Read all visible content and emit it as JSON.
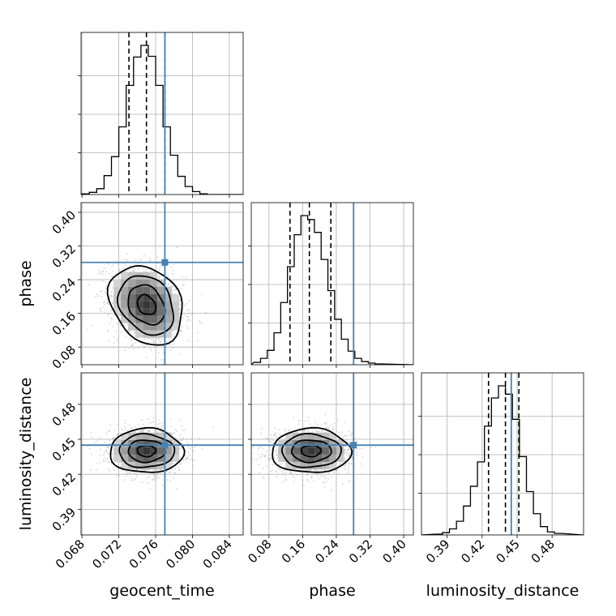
{
  "chart_data": {
    "type": "corner",
    "parameters": [
      "geocent_time",
      "phase",
      "luminosity_distance"
    ],
    "axis_labels": {
      "x": [
        "geocent_time",
        "phase",
        "luminosity_distance"
      ],
      "y": [
        "phase",
        "luminosity_distance"
      ]
    },
    "ranges": {
      "geocent_time": [
        0.0679,
        0.0855
      ],
      "phase": [
        0.038,
        0.423
      ],
      "luminosity_distance": [
        0.368,
        0.507
      ]
    },
    "ticks": {
      "geocent_time": [
        "0.068",
        "0.072",
        "0.076",
        "0.080",
        "0.084"
      ],
      "phase": [
        "0.08",
        "0.16",
        "0.24",
        "0.32",
        "0.40"
      ],
      "luminosity_distance": [
        "0.39",
        "0.42",
        "0.45",
        "0.48"
      ]
    },
    "truths": {
      "geocent_time": 0.077,
      "phase": 0.281,
      "luminosity_distance": 0.445
    },
    "posterior": {
      "geocent_time": {
        "mean": 0.075,
        "sigma": 0.002,
        "quantiles": [
          0.0731,
          0.075,
          0.077
        ]
      },
      "phase": {
        "mean": 0.18,
        "sigma": 0.047,
        "quantiles": [
          0.13,
          0.176,
          0.227
        ]
      },
      "luminosity_distance": {
        "mean": 0.44,
        "sigma": 0.0095,
        "quantiles": [
          0.4255,
          0.44,
          0.4515
        ]
      }
    },
    "histograms": {
      "geocent_time": {
        "bins": [
          0.068,
          0.0688,
          0.0696,
          0.0704,
          0.0712,
          0.072,
          0.0728,
          0.0736,
          0.0744,
          0.0752,
          0.076,
          0.0768,
          0.0776,
          0.0784,
          0.0792,
          0.08,
          0.0808,
          0.0816,
          0.0824
        ],
        "counts": [
          1,
          3,
          8,
          26,
          52,
          93,
          150,
          189,
          205,
          190,
          150,
          93,
          54,
          25,
          11,
          4,
          1,
          0
        ]
      },
      "phase": {
        "bins": [
          0.044,
          0.06,
          0.076,
          0.092,
          0.108,
          0.124,
          0.14,
          0.156,
          0.172,
          0.188,
          0.204,
          0.22,
          0.236,
          0.252,
          0.268,
          0.284,
          0.3,
          0.316,
          0.332,
          0.348
        ],
        "counts": [
          3,
          8,
          18,
          40,
          78,
          123,
          163,
          187,
          182,
          166,
          132,
          93,
          57,
          32,
          17,
          8,
          4,
          2,
          1
        ]
      },
      "luminosity_distance": {
        "bins": [
          0.38,
          0.386,
          0.392,
          0.398,
          0.404,
          0.41,
          0.416,
          0.422,
          0.428,
          0.434,
          0.44,
          0.446,
          0.452,
          0.458,
          0.464,
          0.47,
          0.476,
          0.482,
          0.488
        ],
        "counts": [
          1,
          3,
          8,
          18,
          38,
          64,
          96,
          143,
          180,
          196,
          185,
          152,
          103,
          57,
          28,
          11,
          4,
          2
        ]
      }
    },
    "correlations": {
      "phase|geocent_time": -0.25,
      "luminosity_distance|geocent_time": 0.0,
      "luminosity_distance|phase": 0.0
    },
    "contour_levels_sigma": [
      0.5,
      1.0,
      1.5,
      2.0
    ],
    "grid": true,
    "colors": {
      "truth": "#4682b4",
      "quantile": "#000000",
      "histogram": "#000000",
      "samples": "#aaaaaa",
      "grid": "#b0b0b0"
    }
  }
}
